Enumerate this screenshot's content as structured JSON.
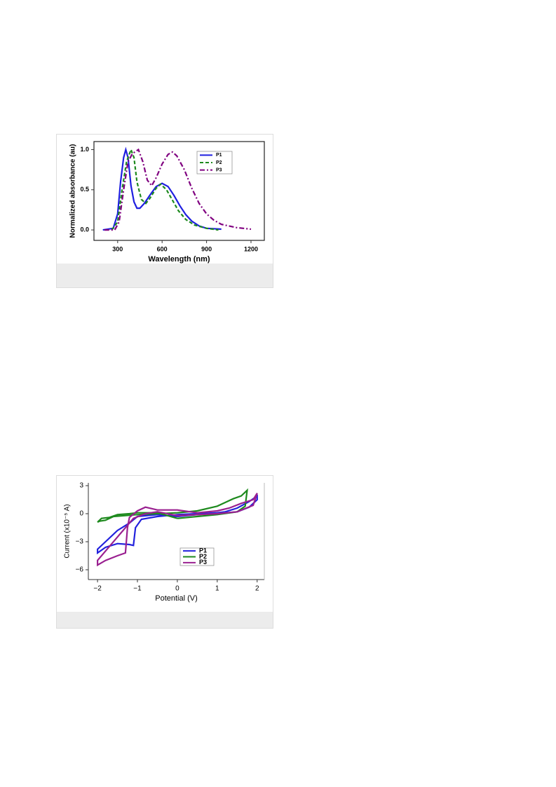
{
  "chart_data": [
    {
      "type": "line",
      "xlabel": "Wavelength (nm)",
      "ylabel": "Normalized absorbance (au)",
      "xlim": [
        140,
        1290
      ],
      "ylim": [
        -0.13,
        1.1
      ],
      "xticks": [
        300,
        600,
        900,
        1200
      ],
      "yticks": [
        {
          "value": 0,
          "label": "0.0"
        },
        {
          "value": 0.5,
          "label": "0.5"
        },
        {
          "value": 1,
          "label": "1.0"
        }
      ],
      "legend": "upper right",
      "series": [
        {
          "name": "P1",
          "color": "#1f1fe0",
          "dash": "solid",
          "x": [
            200,
            270,
            300,
            320,
            340,
            355,
            370,
            390,
            410,
            430,
            450,
            480,
            520,
            560,
            600,
            640,
            680,
            720,
            760,
            800,
            850,
            900,
            1000
          ],
          "values": [
            0,
            0.02,
            0.2,
            0.6,
            0.9,
            1.0,
            0.9,
            0.55,
            0.35,
            0.27,
            0.27,
            0.33,
            0.44,
            0.54,
            0.58,
            0.54,
            0.43,
            0.3,
            0.19,
            0.11,
            0.05,
            0.02,
            0.01
          ]
        },
        {
          "name": "P2",
          "color": "#1e8a1e",
          "dash": "dashed",
          "x": [
            260,
            300,
            330,
            360,
            390,
            410,
            430,
            460,
            490,
            520,
            560,
            590,
            630,
            670,
            710,
            760,
            820,
            900,
            980
          ],
          "values": [
            0,
            0.1,
            0.5,
            0.85,
            1.0,
            0.9,
            0.6,
            0.38,
            0.33,
            0.4,
            0.52,
            0.57,
            0.5,
            0.37,
            0.24,
            0.13,
            0.06,
            0.02,
            0
          ]
        },
        {
          "name": "P3",
          "color": "#800080",
          "dash": "dashdot",
          "x": [
            210,
            280,
            310,
            340,
            370,
            400,
            440,
            470,
            500,
            530,
            560,
            600,
            640,
            670,
            700,
            750,
            800,
            850,
            900,
            950,
            1000,
            1100,
            1200
          ],
          "values": [
            0,
            0,
            0.1,
            0.5,
            0.85,
            0.95,
            1.0,
            0.85,
            0.62,
            0.55,
            0.65,
            0.82,
            0.94,
            0.97,
            0.92,
            0.75,
            0.52,
            0.33,
            0.2,
            0.12,
            0.07,
            0.03,
            0.01
          ]
        }
      ]
    },
    {
      "type": "line",
      "xlabel": "Potential (V)",
      "ylabel": "Current (x10⁻⁵ A)",
      "xlim": [
        -2.23,
        2.18
      ],
      "ylim": [
        -7.05,
        3.3
      ],
      "xticks": [
        {
          "value": -2,
          "label": "−2"
        },
        {
          "value": -1,
          "label": "−1"
        },
        0,
        1,
        2
      ],
      "yticks": [
        {
          "value": -6,
          "label": "−6"
        },
        {
          "value": -3,
          "label": "−3"
        },
        0,
        3
      ],
      "legend": "lower center",
      "series": [
        {
          "name": "P1",
          "color": "#2222dd",
          "dash": "solid",
          "x": [
            0,
            0.5,
            1,
            1.5,
            1.8,
            2,
            2,
            1.8,
            1.5,
            1.2,
            1,
            0.5,
            0,
            -0.5,
            -0.9,
            -1.05,
            -1.1,
            -1.2,
            -1.5,
            -1.8,
            -2,
            -2,
            -1.8,
            -1.5,
            -1.2,
            -1,
            -0.5,
            0
          ],
          "values": [
            -0.3,
            -0.1,
            0,
            0.2,
            0.7,
            1.5,
            1.9,
            1.3,
            0.6,
            0.2,
            0.1,
            0,
            -0.1,
            -0.3,
            -0.6,
            -1.5,
            -3.4,
            -3.3,
            -3.2,
            -3.6,
            -4.2,
            -3.8,
            -3.0,
            -1.8,
            -1.0,
            -0.3,
            -0.1,
            -0.3
          ]
        },
        {
          "name": "P2",
          "color": "#1e8a1e",
          "dash": "solid",
          "x": [
            0,
            0.5,
            1,
            1.5,
            1.7,
            1.75,
            1.6,
            1.4,
            1.2,
            1,
            0.5,
            0,
            -0.5,
            -1,
            -1.3,
            -1.6,
            -1.8,
            -1.95,
            -2,
            -1.9,
            -1.7,
            -1.5,
            -1.2,
            -1,
            -0.5,
            0
          ],
          "values": [
            -0.5,
            -0.3,
            -0.1,
            0.2,
            0.8,
            2.5,
            1.9,
            1.6,
            1.2,
            0.8,
            0.3,
            0.1,
            0,
            -0.1,
            -0.2,
            -0.3,
            -0.7,
            -0.8,
            -0.9,
            -0.5,
            -0.4,
            -0.1,
            0,
            0.1,
            0.1,
            -0.5
          ]
        },
        {
          "name": "P3",
          "color": "#9a2090",
          "dash": "solid",
          "x": [
            0,
            0.5,
            1,
            1.5,
            1.9,
            2,
            1.9,
            1.6,
            1.3,
            1,
            0.5,
            0,
            -0.5,
            -0.8,
            -1,
            -1.2,
            -1.25,
            -1.3,
            -1.5,
            -1.8,
            -2,
            -2,
            -1.8,
            -1.5,
            -1.3,
            -1.1,
            -0.8,
            -0.5,
            0
          ],
          "values": [
            -0.2,
            -0.1,
            0,
            0.2,
            0.9,
            2.2,
            1.5,
            1.1,
            0.6,
            0.3,
            0.1,
            0.4,
            0.4,
            0.7,
            0.3,
            -0.4,
            -1.5,
            -4.2,
            -4.5,
            -5.0,
            -5.5,
            -5.0,
            -4.0,
            -2.5,
            -1.5,
            -0.5,
            0,
            0.2,
            -0.2
          ]
        }
      ]
    }
  ]
}
